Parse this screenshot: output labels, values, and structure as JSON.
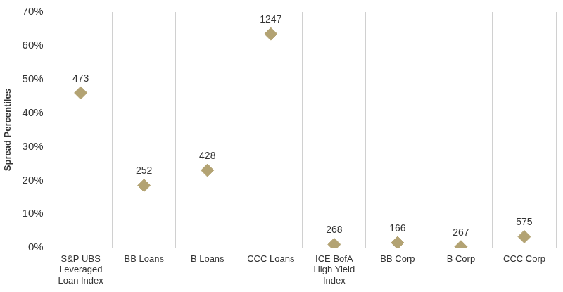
{
  "chart_data": {
    "type": "scatter",
    "y_label": "Spread Percentiles",
    "categories": [
      [
        "S&P UBS",
        "Leveraged",
        "Loan Index"
      ],
      "BB Loans",
      "B Loans",
      "CCC Loans",
      [
        "ICE BofA",
        "High Yield",
        "Index"
      ],
      "BB Corp",
      "B Corp",
      "CCC Corp"
    ],
    "values": [
      46,
      18.5,
      23,
      63.5,
      1,
      1.5,
      0.3,
      3.3
    ],
    "spreads": [
      473,
      252,
      428,
      1247,
      268,
      166,
      267,
      575
    ],
    "color": "#b3a373",
    "marker": "diamond",
    "ylim": [
      0,
      70
    ],
    "yticks": [
      {
        "value": 0,
        "label": "0%"
      },
      {
        "value": 10,
        "label": "10%"
      },
      {
        "value": 20,
        "label": "20%"
      },
      {
        "value": 30,
        "label": "30%"
      },
      {
        "value": 40,
        "label": "40%"
      },
      {
        "value": 50,
        "label": "50%"
      },
      {
        "value": 60,
        "label": "60%"
      },
      {
        "value": 70,
        "label": "70%"
      }
    ],
    "grid": "x"
  }
}
